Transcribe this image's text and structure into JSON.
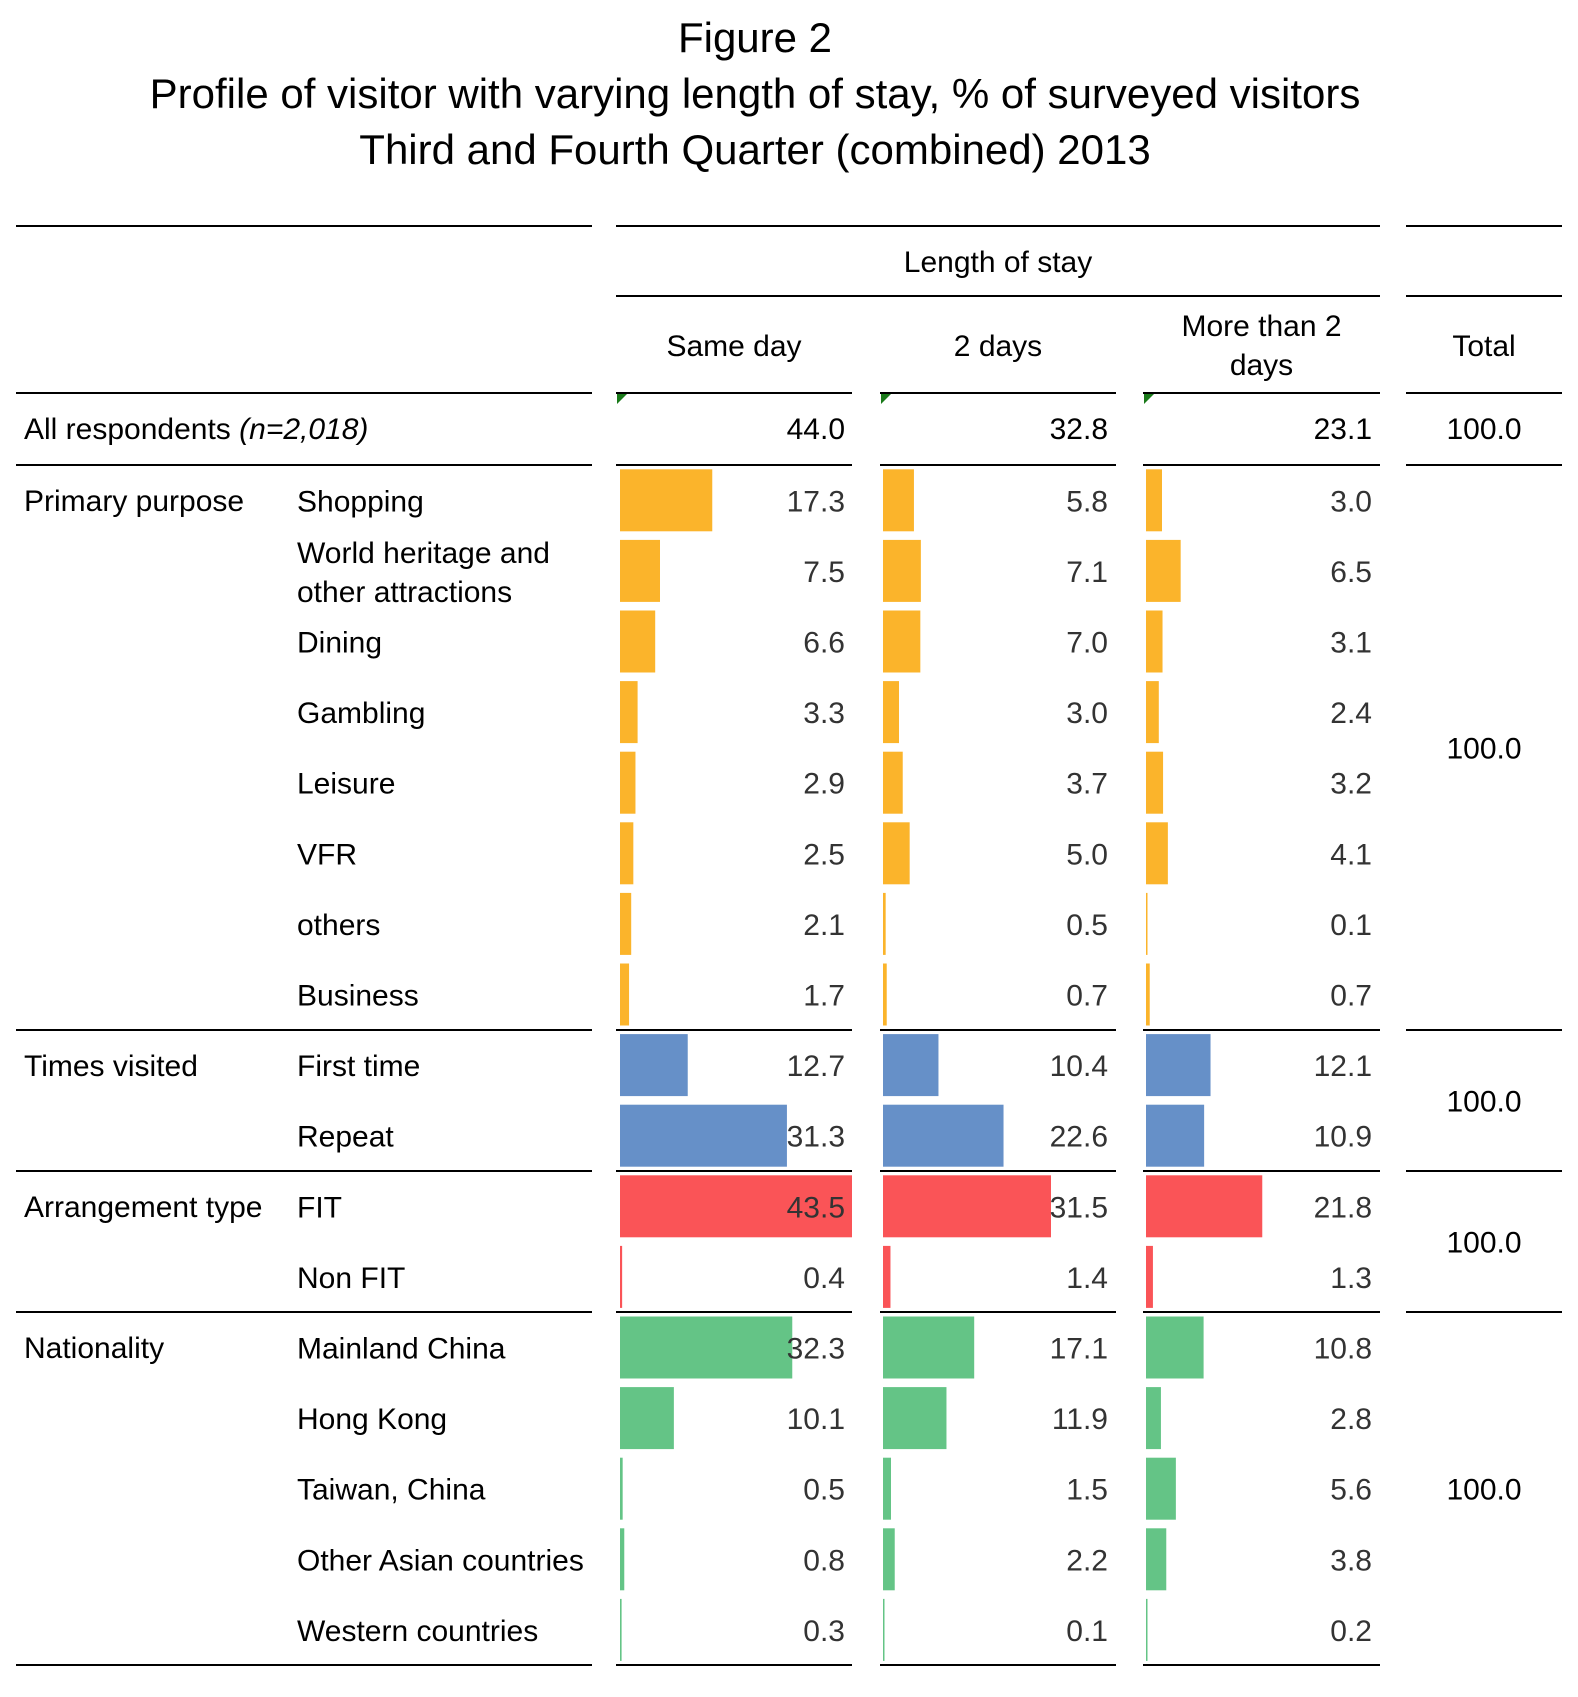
{
  "titles": {
    "figure": "Figure 2",
    "line1": "Profile of visitor with varying length of stay, % of surveyed visitors",
    "line2": "Third and Fourth Quarter (combined) 2013"
  },
  "header": {
    "group": "Length of stay",
    "columns": [
      "Same day",
      "2 days",
      "More than 2 days"
    ],
    "total": "Total"
  },
  "all_respondents": {
    "label": "All respondents",
    "n": "(n=2,018)",
    "values": [
      "44.0",
      "32.8",
      "23.1"
    ],
    "total": "100.0"
  },
  "colors": {
    "Primary purpose": "#FBB42B",
    "Times visited": "#6690C8",
    "Arrangement type": "#FA5457",
    "Nationality": "#64C486"
  },
  "chart_data": {
    "type": "bar",
    "title": "Profile of visitor with varying length of stay, % of surveyed visitors",
    "subtitle": "Third and Fourth Quarter (combined) 2013",
    "columns": [
      "Same day",
      "2 days",
      "More than 2 days"
    ],
    "groups": [
      {
        "name": "Primary purpose",
        "total": "100.0",
        "rows": [
          {
            "label": "Shopping",
            "values": [
              17.3,
              5.8,
              3.0
            ]
          },
          {
            "label": "World heritage and other attractions",
            "values": [
              7.5,
              7.1,
              6.5
            ]
          },
          {
            "label": "Dining",
            "values": [
              6.6,
              7.0,
              3.1
            ]
          },
          {
            "label": "Gambling",
            "values": [
              3.3,
              3.0,
              2.4
            ]
          },
          {
            "label": "Leisure",
            "values": [
              2.9,
              3.7,
              3.2
            ]
          },
          {
            "label": "VFR",
            "values": [
              2.5,
              5.0,
              4.1
            ]
          },
          {
            "label": "others",
            "values": [
              2.1,
              0.5,
              0.1
            ]
          },
          {
            "label": "Business",
            "values": [
              1.7,
              0.7,
              0.7
            ]
          }
        ]
      },
      {
        "name": "Times visited",
        "total": "100.0",
        "rows": [
          {
            "label": "First time",
            "values": [
              12.7,
              10.4,
              12.1
            ]
          },
          {
            "label": "Repeat",
            "values": [
              31.3,
              22.6,
              10.9
            ]
          }
        ]
      },
      {
        "name": "Arrangement type",
        "total": "100.0",
        "rows": [
          {
            "label": "FIT",
            "values": [
              43.5,
              31.5,
              21.8
            ]
          },
          {
            "label": "Non FIT",
            "values": [
              0.4,
              1.4,
              1.3
            ]
          }
        ]
      },
      {
        "name": "Nationality",
        "total": "100.0",
        "rows": [
          {
            "label": "Mainland China",
            "values": [
              32.3,
              17.1,
              10.8
            ]
          },
          {
            "label": "Hong Kong",
            "values": [
              10.1,
              11.9,
              2.8
            ]
          },
          {
            "label": "Taiwan, China",
            "values": [
              0.5,
              1.5,
              5.6
            ]
          },
          {
            "label": "Other Asian countries",
            "values": [
              0.8,
              2.2,
              3.8
            ]
          },
          {
            "label": "Western countries",
            "values": [
              0.3,
              0.1,
              0.2
            ]
          }
        ]
      }
    ]
  }
}
